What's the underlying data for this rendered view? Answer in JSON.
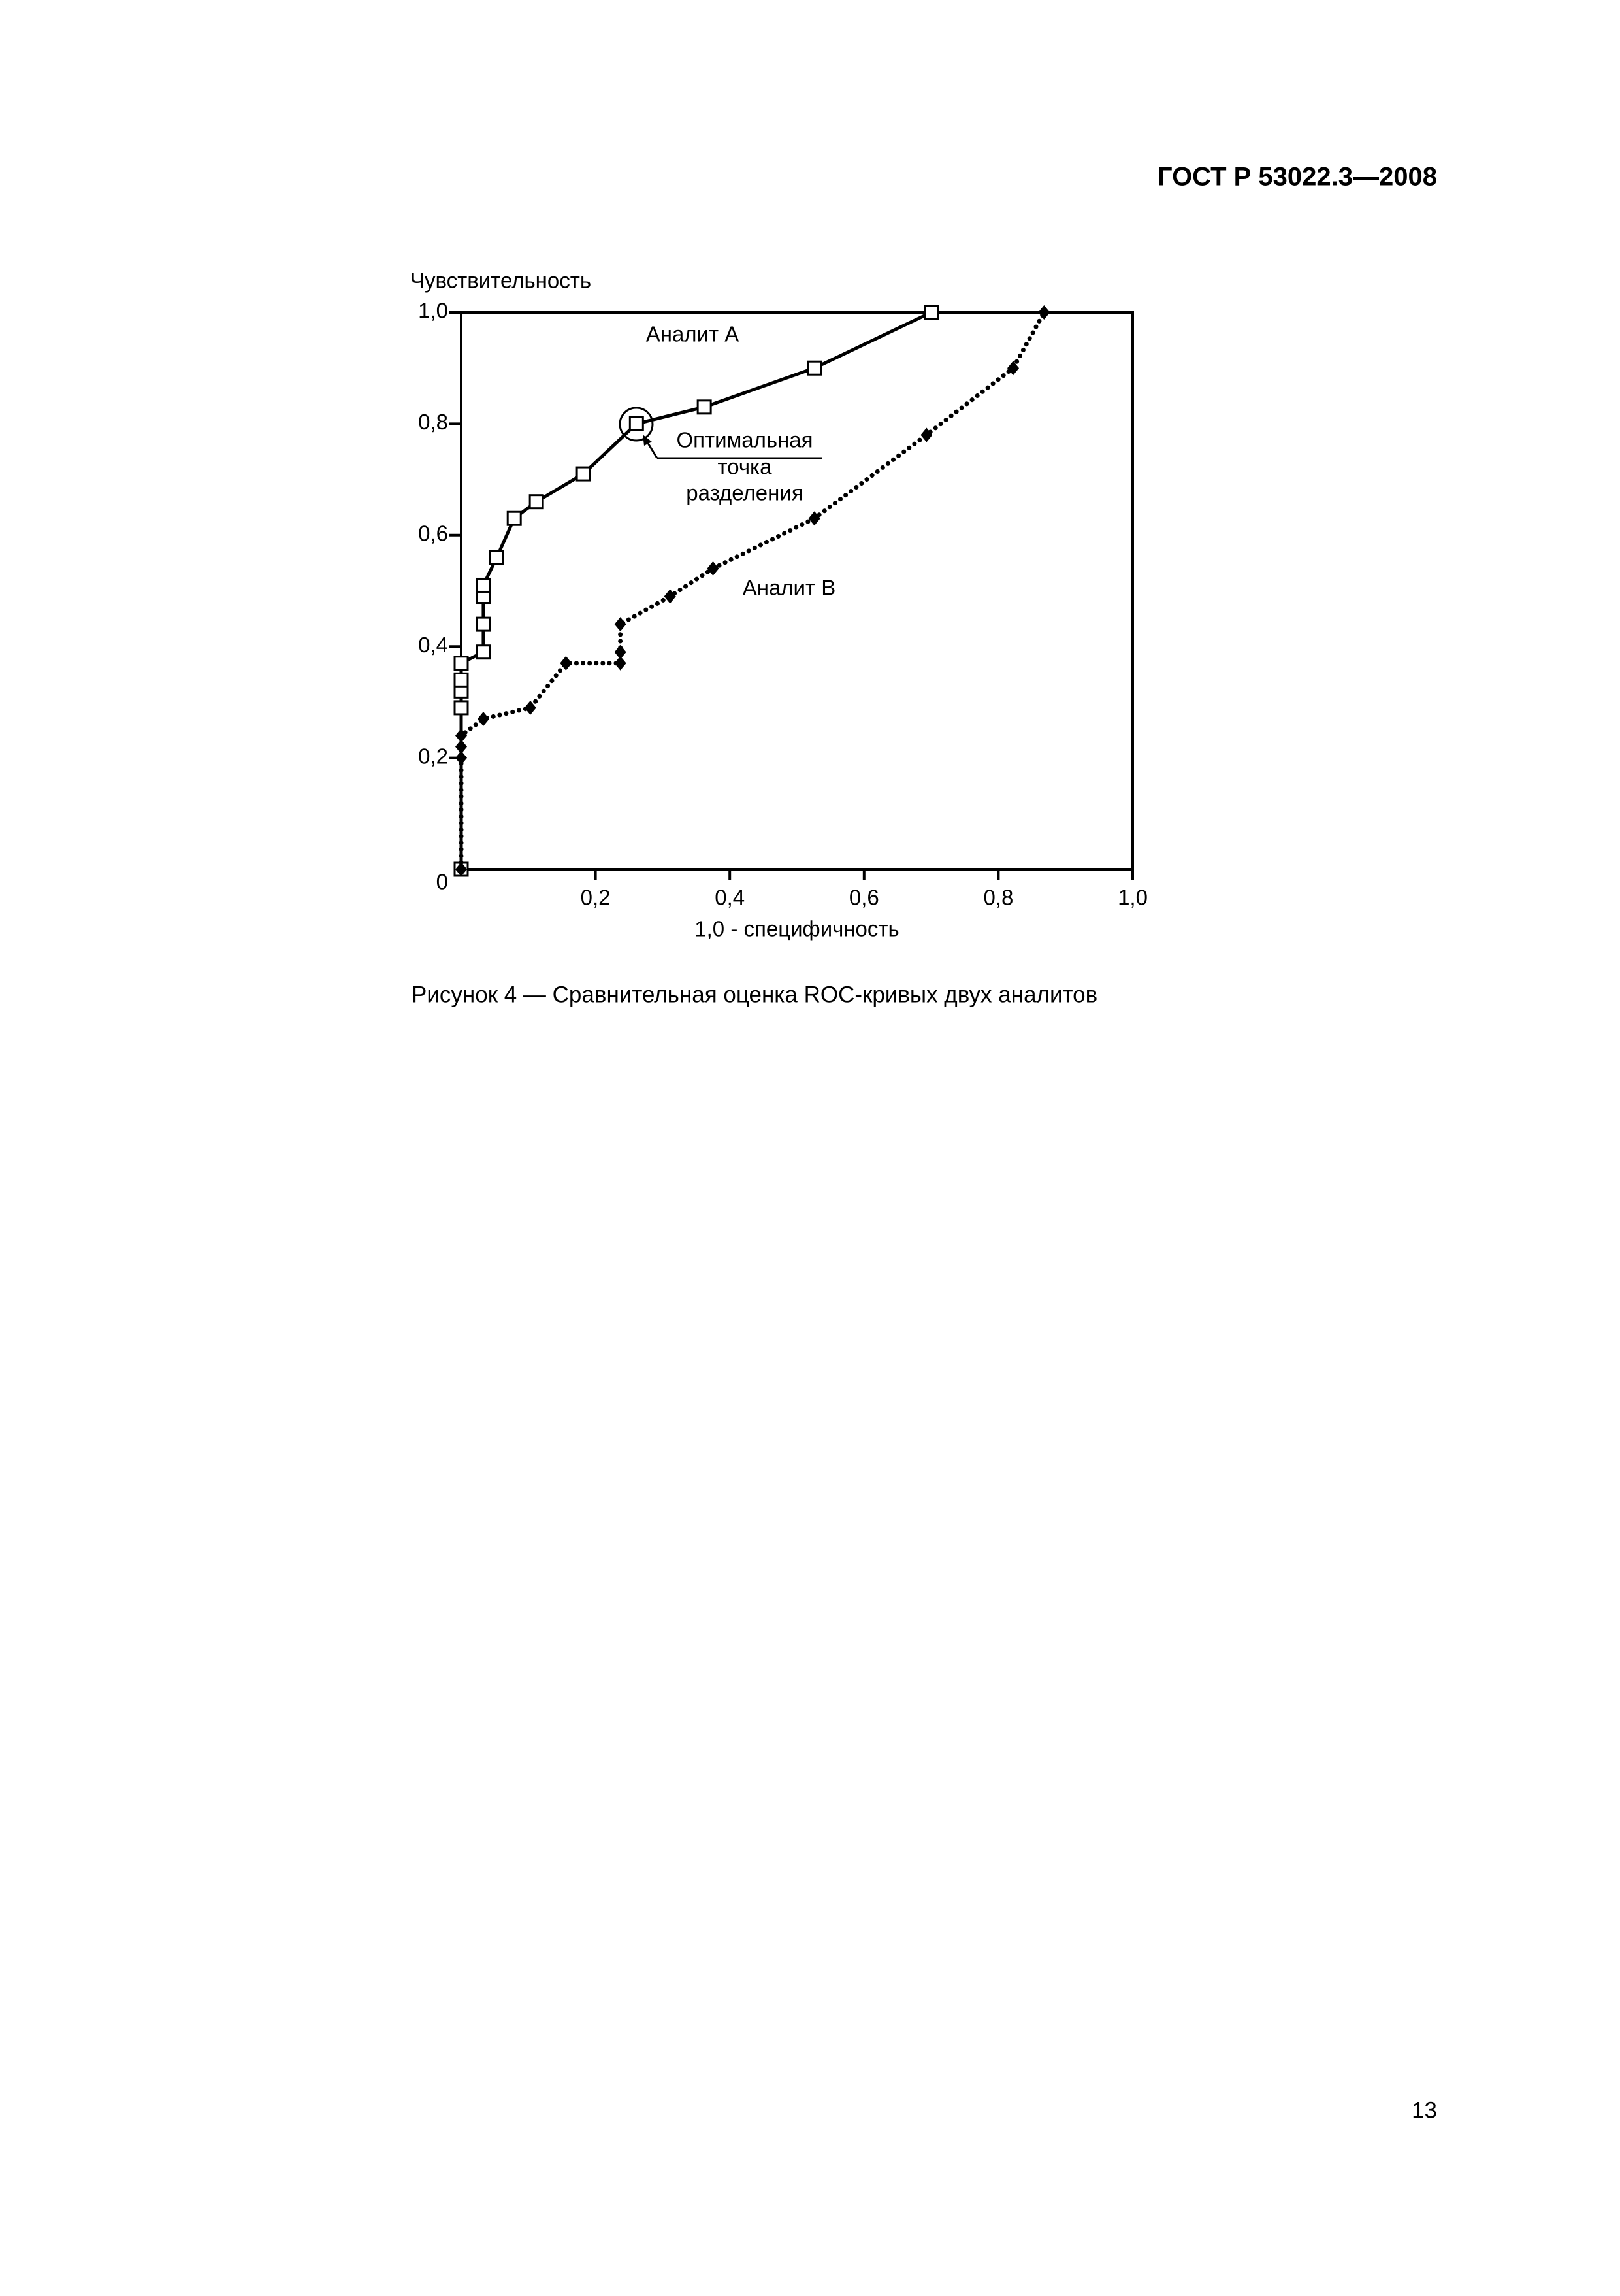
{
  "header": {
    "title": "ГОСТ Р 53022.3—2008"
  },
  "chart_data": {
    "type": "line",
    "ylabel": "Чувствительность",
    "xlabel": "1,0 - специфичность",
    "xlim": [
      0,
      1
    ],
    "ylim": [
      0,
      1
    ],
    "xticks": [
      {
        "value": 0.2,
        "label": "0,2"
      },
      {
        "value": 0.4,
        "label": "0,4"
      },
      {
        "value": 0.6,
        "label": "0,6"
      },
      {
        "value": 0.8,
        "label": "0,8"
      },
      {
        "value": 1.0,
        "label": "1,0"
      }
    ],
    "yticks": [
      0,
      {
        "value": 0.2,
        "label": "0,2"
      },
      {
        "value": 0.4,
        "label": "0,4"
      },
      {
        "value": 0.6,
        "label": "0,6"
      },
      {
        "value": 0.8,
        "label": "0,8"
      },
      {
        "value": 1.0,
        "label": "1,0"
      }
    ],
    "series": [
      {
        "name": "Аналит А",
        "color": "#000000",
        "marker": "square",
        "line_style": "solid",
        "x": [
          0,
          0,
          0,
          0,
          0,
          0.033,
          0.033,
          0.033,
          0.033,
          0.053,
          0.079,
          0.112,
          0.182,
          0.261,
          0.362,
          0.526,
          0.7
        ],
        "values": [
          0,
          0.29,
          0.32,
          0.34,
          0.37,
          0.39,
          0.44,
          0.49,
          0.51,
          0.56,
          0.63,
          0.66,
          0.71,
          0.8,
          0.83,
          0.9,
          1.0
        ]
      },
      {
        "name": "Аналит В",
        "color": "#000000",
        "marker": "diamond",
        "line_style": "dotted",
        "x": [
          0,
          0,
          0,
          0,
          0.033,
          0.103,
          0.156,
          0.237,
          0.237,
          0.237,
          0.311,
          0.375,
          0.526,
          0.693,
          0.822,
          0.868
        ],
        "values": [
          0,
          0.2,
          0.22,
          0.24,
          0.27,
          0.29,
          0.37,
          0.37,
          0.39,
          0.44,
          0.49,
          0.54,
          0.63,
          0.78,
          0.9,
          1.0
        ]
      }
    ],
    "annotation": [
      "Оптимальная",
      "точка",
      "разделения"
    ]
  },
  "caption": "Рисунок 4 — Сравнительная оценка ROC-кривых двух аналитов",
  "page_number": "13"
}
